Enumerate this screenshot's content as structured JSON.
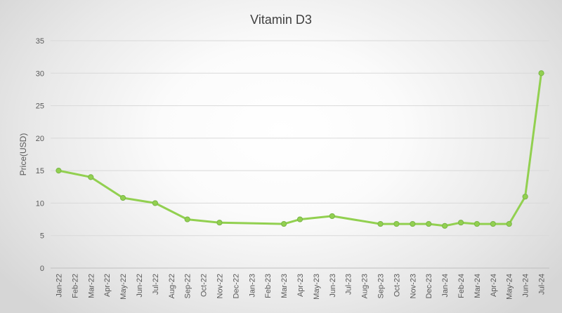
{
  "chart_data": {
    "type": "line",
    "title": "Vitamin D3",
    "ylabel": "Price(USD)",
    "xlabel": "",
    "ylim": [
      0,
      35
    ],
    "yticks": [
      0,
      5,
      10,
      15,
      20,
      25,
      30,
      35
    ],
    "grid": true,
    "legend": "none",
    "line_color": "#92d050",
    "categories": [
      "Jan-22",
      "Feb-22",
      "Mar-22",
      "Apr-22",
      "May-22",
      "Jun-22",
      "Jul-22",
      "Aug-22",
      "Sep-22",
      "Oct-22",
      "Nov-22",
      "Dec-22",
      "Jan-23",
      "Feb-23",
      "Mar-23",
      "Apr-23",
      "May-23",
      "Jun-23",
      "Jul-23",
      "Aug-23",
      "Sep-23",
      "Oct-23",
      "Nov-23",
      "Dec-23",
      "Jan-24",
      "Feb-24",
      "Mar-24",
      "Apr-24",
      "May-24",
      "Jun-24",
      "Jul-24"
    ],
    "series": [
      {
        "points": [
          {
            "x": "Jan-22",
            "y": 15
          },
          {
            "x": "Mar-22",
            "y": 14
          },
          {
            "x": "May-22",
            "y": 10.8
          },
          {
            "x": "Jul-22",
            "y": 10
          },
          {
            "x": "Sep-22",
            "y": 7.5
          },
          {
            "x": "Nov-22",
            "y": 7
          },
          {
            "x": "Mar-23",
            "y": 6.8
          },
          {
            "x": "Apr-23",
            "y": 7.5
          },
          {
            "x": "Jun-23",
            "y": 8
          },
          {
            "x": "Sep-23",
            "y": 6.8
          },
          {
            "x": "Oct-23",
            "y": 6.8
          },
          {
            "x": "Nov-23",
            "y": 6.8
          },
          {
            "x": "Dec-23",
            "y": 6.8
          },
          {
            "x": "Jan-24",
            "y": 6.5
          },
          {
            "x": "Feb-24",
            "y": 7
          },
          {
            "x": "Mar-24",
            "y": 6.8
          },
          {
            "x": "Apr-24",
            "y": 6.8
          },
          {
            "x": "May-24",
            "y": 6.8
          },
          {
            "x": "Jun-24",
            "y": 11
          },
          {
            "x": "Jul-24",
            "y": 30
          }
        ]
      }
    ]
  }
}
